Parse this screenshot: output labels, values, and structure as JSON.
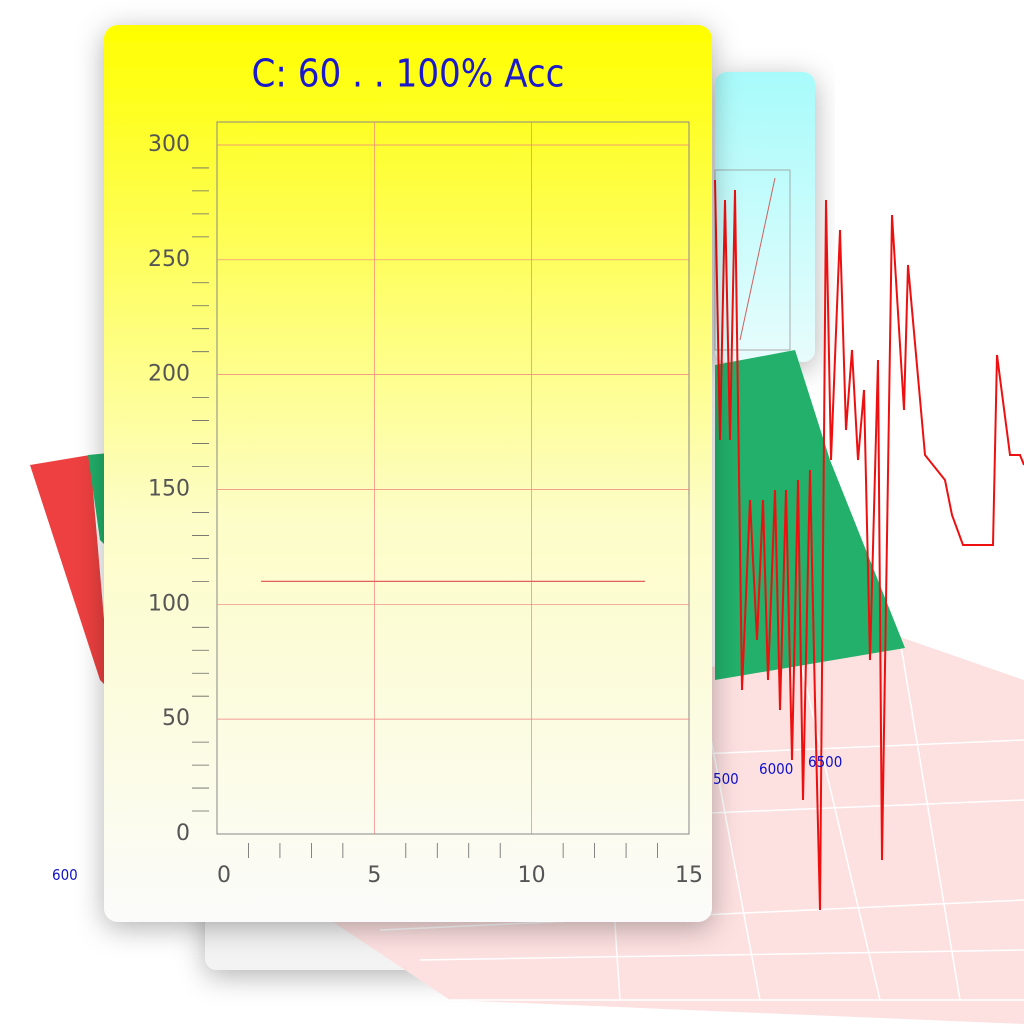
{
  "chart_data": {
    "type": "line",
    "title": "C: 60 . . 100% Acc",
    "x": [
      1.4,
      13.6
    ],
    "values": [
      110,
      110
    ],
    "color": "#e06060",
    "xlim": [
      0,
      15
    ],
    "xticks": [
      0,
      5,
      10,
      15
    ],
    "ylim": [
      0,
      310
    ],
    "yticks": [
      0,
      50,
      100,
      150,
      200,
      250,
      300
    ],
    "grid": true,
    "grid_color": "#f08080"
  },
  "background_labels": [
    "600",
    "500",
    "6000",
    "6500"
  ]
}
